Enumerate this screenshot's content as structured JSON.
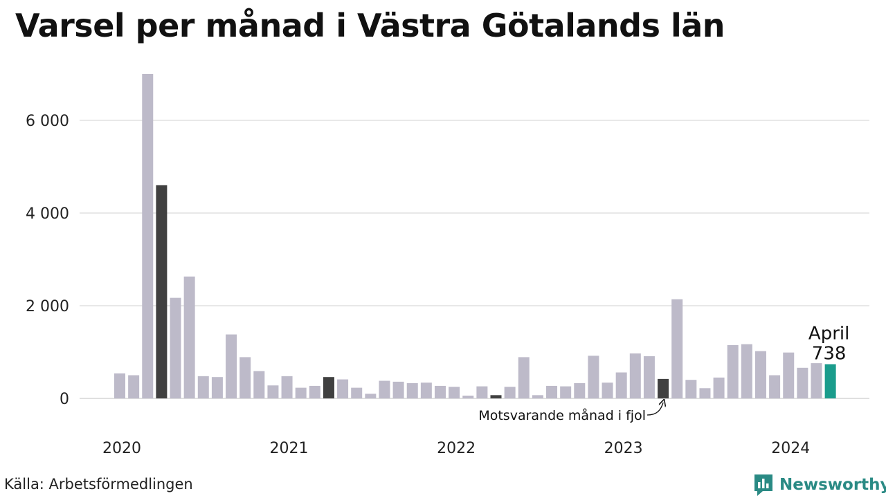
{
  "title": "Varsel per månad i Västra Götalands län",
  "source": "Källa: Arbetsförmedlingen",
  "brand": {
    "name": "Newsworthy",
    "icon": "newsworthy-logo-icon"
  },
  "colors": {
    "bar": "#bdbac9",
    "same_month_last_year": "#404040",
    "current": "#1a9c8c",
    "grid": "#e0e0e0",
    "brand": "#2a8a84"
  },
  "chart_data": {
    "type": "bar",
    "title": "Varsel per månad i Västra Götalands län",
    "xlabel": "",
    "ylabel": "",
    "ylim": [
      0,
      7000
    ],
    "yticks": [
      0,
      2000,
      4000,
      6000
    ],
    "ytick_labels": [
      "0",
      "2 000",
      "4 000",
      "6 000"
    ],
    "xtick_labels": [
      "2020",
      "2021",
      "2022",
      "2023",
      "2024"
    ],
    "grid": true,
    "categories": [
      "2020-01",
      "2020-02",
      "2020-03",
      "2020-04",
      "2020-05",
      "2020-06",
      "2020-07",
      "2020-08",
      "2020-09",
      "2020-10",
      "2020-11",
      "2020-12",
      "2021-01",
      "2021-02",
      "2021-03",
      "2021-04",
      "2021-05",
      "2021-06",
      "2021-07",
      "2021-08",
      "2021-09",
      "2021-10",
      "2021-11",
      "2021-12",
      "2022-01",
      "2022-02",
      "2022-03",
      "2022-04",
      "2022-05",
      "2022-06",
      "2022-07",
      "2022-08",
      "2022-09",
      "2022-10",
      "2022-11",
      "2022-12",
      "2023-01",
      "2023-02",
      "2023-03",
      "2023-04",
      "2023-05",
      "2023-06",
      "2023-07",
      "2023-08",
      "2023-09",
      "2023-10",
      "2023-11",
      "2023-12",
      "2024-01",
      "2024-02",
      "2024-03",
      "2024-04"
    ],
    "values": [
      540,
      500,
      7000,
      4600,
      2170,
      2630,
      480,
      460,
      1380,
      890,
      590,
      280,
      480,
      230,
      270,
      460,
      410,
      230,
      100,
      380,
      360,
      330,
      340,
      270,
      250,
      60,
      260,
      70,
      250,
      890,
      70,
      270,
      260,
      330,
      920,
      340,
      560,
      970,
      910,
      420,
      2140,
      400,
      220,
      450,
      1150,
      1170,
      1020,
      500,
      990,
      660,
      760,
      738
    ],
    "highlight_same_month": [
      "2020-04",
      "2021-04",
      "2022-04",
      "2023-04"
    ],
    "current": "2024-04",
    "annotations": {
      "current_month": "April",
      "current_value": "738",
      "same_month_note": "Motsvarande månad i fjol"
    }
  }
}
